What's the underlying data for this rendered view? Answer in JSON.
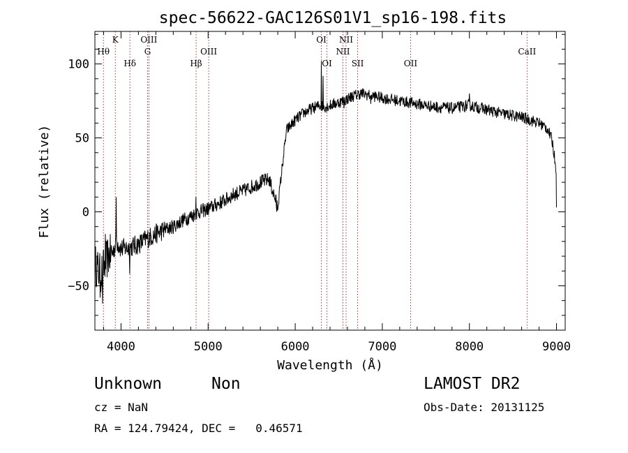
{
  "chart_data": {
    "type": "line",
    "title": "spec-56622-GAC126S01V1_sp16-198.fits",
    "xlabel": "Wavelength (Å)",
    "ylabel": "Flux (relative)",
    "xlim": [
      3700,
      9100
    ],
    "ylim": [
      -80,
      122
    ],
    "x_ticks": [
      4000,
      5000,
      6000,
      7000,
      8000,
      9000
    ],
    "y_ticks": [
      -50,
      0,
      50,
      100
    ],
    "grid": false,
    "line_color": "#000000",
    "marker_color": "#8b0000",
    "spectrum_anchors": [
      [
        3700,
        -35
      ],
      [
        3760,
        -42
      ],
      [
        3800,
        -38
      ],
      [
        3850,
        -30
      ],
      [
        3900,
        -28
      ],
      [
        3950,
        -20
      ],
      [
        4000,
        -25
      ],
      [
        4100,
        -24
      ],
      [
        4200,
        -22
      ],
      [
        4300,
        -18
      ],
      [
        4400,
        -15
      ],
      [
        4500,
        -12
      ],
      [
        4600,
        -10
      ],
      [
        4700,
        -6
      ],
      [
        4800,
        -3
      ],
      [
        4900,
        0
      ],
      [
        5000,
        2
      ],
      [
        5100,
        5
      ],
      [
        5200,
        8
      ],
      [
        5300,
        12
      ],
      [
        5400,
        14
      ],
      [
        5500,
        17
      ],
      [
        5600,
        20
      ],
      [
        5700,
        22
      ],
      [
        5800,
        3
      ],
      [
        5850,
        30
      ],
      [
        5900,
        55
      ],
      [
        6000,
        62
      ],
      [
        6100,
        67
      ],
      [
        6200,
        70
      ],
      [
        6280,
        72
      ],
      [
        6350,
        71
      ],
      [
        6450,
        73
      ],
      [
        6550,
        75
      ],
      [
        6650,
        78
      ],
      [
        6750,
        80
      ],
      [
        6850,
        79
      ],
      [
        7000,
        77
      ],
      [
        7200,
        75
      ],
      [
        7400,
        73
      ],
      [
        7600,
        71
      ],
      [
        7800,
        70
      ],
      [
        8000,
        72
      ],
      [
        8200,
        69
      ],
      [
        8400,
        66
      ],
      [
        8600,
        64
      ],
      [
        8800,
        60
      ],
      [
        8900,
        56
      ],
      [
        8950,
        48
      ],
      [
        9000,
        28
      ]
    ],
    "spectrum_spikes": [
      [
        3760,
        -58
      ],
      [
        3790,
        -62
      ],
      [
        3820,
        -15
      ],
      [
        3945,
        10
      ],
      [
        4100,
        -42
      ],
      [
        4860,
        10
      ],
      [
        5790,
        0
      ],
      [
        6300,
        102
      ],
      [
        6320,
        92
      ],
      [
        6560,
        70
      ],
      [
        6870,
        73
      ],
      [
        8000,
        80
      ],
      [
        9000,
        3
      ]
    ],
    "lines": [
      {
        "label": "Hθ",
        "x": 3798,
        "level": 2
      },
      {
        "label": "K",
        "x": 3934,
        "level": 1
      },
      {
        "label": "Hδ",
        "x": 4102,
        "level": 3
      },
      {
        "label": "OIII",
        "x": 4320,
        "level": 1
      },
      {
        "label": "G",
        "x": 4305,
        "level": 2
      },
      {
        "label": "Hβ",
        "x": 4862,
        "level": 3
      },
      {
        "label": "OIII",
        "x": 5007,
        "level": 2
      },
      {
        "label": "OI",
        "x": 6300,
        "level": 1
      },
      {
        "label": "OI",
        "x": 6364,
        "level": 3
      },
      {
        "label": "NII",
        "x": 6584,
        "level": 1
      },
      {
        "label": "NII",
        "x": 6548,
        "level": 2
      },
      {
        "label": "SII",
        "x": 6717,
        "level": 3
      },
      {
        "label": "OII",
        "x": 7325,
        "level": 3
      },
      {
        "label": "CaII",
        "x": 8662,
        "level": 2
      }
    ]
  },
  "info": {
    "class": "Unknown",
    "subclass": "Non",
    "survey": "LAMOST DR2",
    "cz": "cz = NaN",
    "obs_date": "Obs-Date: 20131125",
    "coords": "RA = 124.79424, DEC =   0.46571"
  }
}
